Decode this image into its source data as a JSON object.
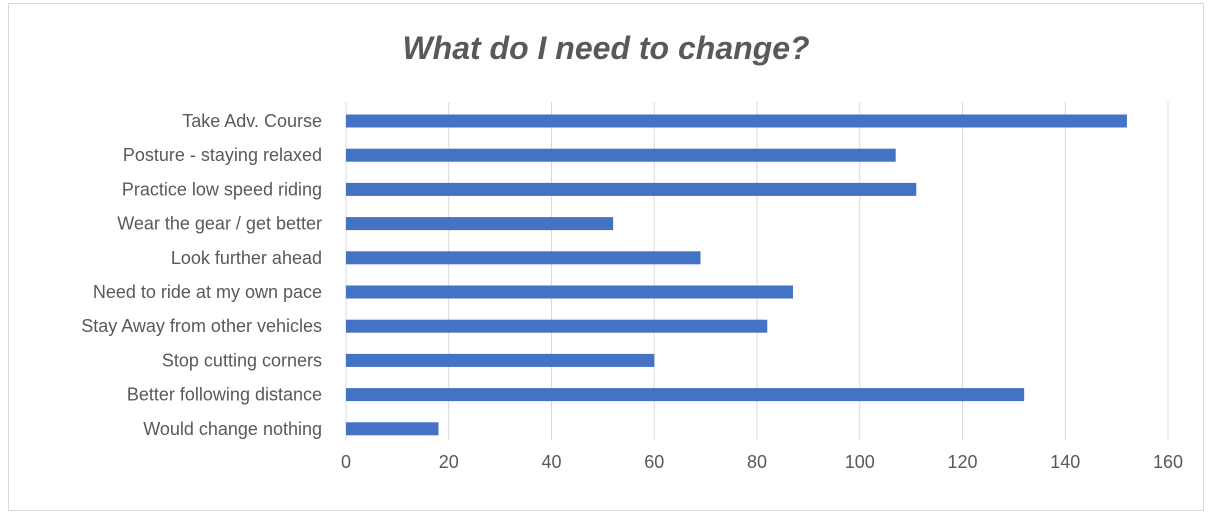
{
  "chart_data": {
    "type": "bar",
    "orientation": "horizontal",
    "title": "What do I need to change?",
    "categories": [
      "Take Adv. Course",
      "Posture - staying relaxed",
      "Practice low speed riding",
      "Wear the gear / get better",
      "Look further ahead",
      "Need to ride at my own pace",
      "Stay Away from other vehicles",
      "Stop cutting corners",
      "Better following distance",
      "Would change nothing"
    ],
    "values": [
      152,
      107,
      111,
      52,
      69,
      87,
      82,
      60,
      132,
      18
    ],
    "xlim": [
      0,
      160
    ],
    "xticks": [
      0,
      20,
      40,
      60,
      80,
      100,
      120,
      140,
      160
    ],
    "grid": true,
    "legend": "none",
    "bar_color": "#4472c4",
    "grid_color": "#d9d9d9",
    "text_color": "#595959"
  }
}
